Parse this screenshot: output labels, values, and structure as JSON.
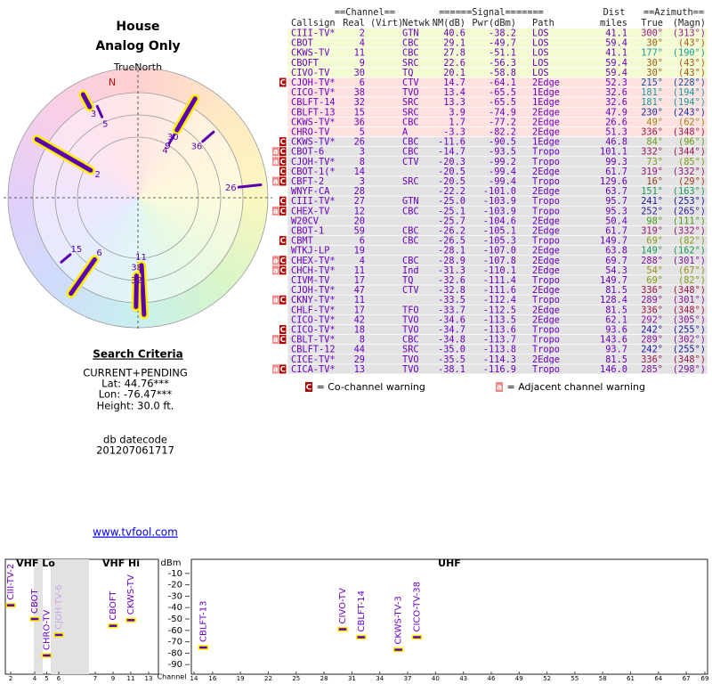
{
  "header": {
    "title": "House",
    "subtitle": "Analog Only"
  },
  "polar": {
    "north_label": "TrueNorth",
    "n_label": "N",
    "spoke_color": "#5a00b0",
    "glow_color": "#ffee00",
    "spokes": [
      {
        "label": "2",
        "azimuth": 300,
        "r": [
          0.42,
          0.9
        ],
        "strong": true
      },
      {
        "label": "3",
        "azimuth": 332,
        "r": [
          0.79,
          0.9
        ],
        "strong": true
      },
      {
        "label": "5",
        "azimuth": 336,
        "r": [
          0.68,
          0.77
        ],
        "strong": false
      },
      {
        "label": "4",
        "azimuth": 30,
        "r": [
          0.48,
          0.53
        ],
        "strong": false
      },
      {
        "label": "9",
        "azimuth": 30,
        "r": [
          0.52,
          0.58
        ],
        "strong": false
      },
      {
        "label": "30",
        "azimuth": 30,
        "r": [
          0.6,
          0.88
        ],
        "strong": true
      },
      {
        "label": "36",
        "azimuth": 49,
        "r": [
          0.66,
          0.77
        ],
        "strong": false
      },
      {
        "label": "26",
        "azimuth": 84,
        "r": [
          0.78,
          0.95
        ],
        "strong": false
      },
      {
        "label": "15",
        "azimuth": 230,
        "r": [
          0.68,
          0.77
        ],
        "strong": false
      },
      {
        "label": "6",
        "azimuth": 215,
        "r": [
          0.58,
          0.9
        ],
        "strong": true
      },
      {
        "label": "11",
        "azimuth": 177,
        "r": [
          0.52,
          0.9
        ],
        "strong": true
      },
      {
        "label": "38",
        "azimuth": 181,
        "r": [
          0.6,
          0.84
        ],
        "strong": true
      },
      {
        "label": "32",
        "azimuth": 181,
        "r": [
          0.7,
          0.76
        ],
        "strong": false
      }
    ]
  },
  "search": {
    "title": "Search Criteria",
    "lines": [
      "CURRENT+PENDING",
      "Lat: 44.76***",
      "Lon: -76.47***",
      "Height: 30.0 ft."
    ],
    "db_label": "db datecode",
    "datecode": "201207061717"
  },
  "link": "www.tvfool.com",
  "table": {
    "group_headers": [
      "==Channel==",
      "======Signal=======",
      "Dist",
      "==Azimuth=="
    ],
    "columns": [
      "Callsign",
      "Real",
      "(Virt)",
      "Netwk",
      "NM(dB)",
      "Pwr(dBm)",
      "Path",
      "miles",
      "True",
      "(Magn)"
    ],
    "text_color": "#6a00c0",
    "warn_colors": {
      "C": "#b00000",
      "a": "#f08a8a"
    },
    "legend": [
      {
        "mark": "C",
        "text": " = Co-channel warning"
      },
      {
        "mark": "a",
        "text": " = Adjacent channel warning"
      }
    ],
    "rows": [
      {
        "bg": "#f3fbd2",
        "warn": [],
        "callsign": "CIII-TV*",
        "real": "2",
        "netwk": "GTN",
        "nm": "40.6",
        "pwr": "-38.2",
        "path": "LOS",
        "miles": "41.1",
        "true": "300°",
        "magn": "(313°)"
      },
      {
        "bg": "#f3fbd2",
        "warn": [],
        "callsign": "CBOT",
        "real": "4",
        "netwk": "CBC",
        "nm": "29.1",
        "pwr": "-49.7",
        "path": "LOS",
        "miles": "59.4",
        "true": "30°",
        "magn": "(43°)"
      },
      {
        "bg": "#f3fbd2",
        "warn": [],
        "callsign": "CKWS-TV",
        "real": "11",
        "netwk": "CBC",
        "nm": "27.8",
        "pwr": "-51.1",
        "path": "LOS",
        "miles": "41.1",
        "true": "177°",
        "magn": "(190°)"
      },
      {
        "bg": "#f3fbd2",
        "warn": [],
        "callsign": "CBOFT",
        "real": "9",
        "netwk": "SRC",
        "nm": "22.6",
        "pwr": "-56.3",
        "path": "LOS",
        "miles": "59.4",
        "true": "30°",
        "magn": "(43°)"
      },
      {
        "bg": "#f3fbd2",
        "warn": [],
        "callsign": "CIVO-TV",
        "real": "30",
        "netwk": "TQ",
        "nm": "20.1",
        "pwr": "-58.8",
        "path": "LOS",
        "miles": "59.4",
        "true": "30°",
        "magn": "(43°)"
      },
      {
        "bg": "#ffe2e0",
        "warn": [
          "C"
        ],
        "callsign": "CJOH-TV*",
        "real": "6",
        "netwk": "CTV",
        "nm": "14.7",
        "pwr": "-64.1",
        "path": "2Edge",
        "miles": "52.3",
        "true": "215°",
        "magn": "(228°)"
      },
      {
        "bg": "#ffe2e0",
        "warn": [],
        "callsign": "CICO-TV*",
        "real": "38",
        "netwk": "TVO",
        "nm": "13.4",
        "pwr": "-65.5",
        "path": "1Edge",
        "miles": "32.6",
        "true": "181°",
        "magn": "(194°)"
      },
      {
        "bg": "#ffe2e0",
        "warn": [],
        "callsign": "CBLFT-14",
        "real": "32",
        "netwk": "SRC",
        "nm": "13.3",
        "pwr": "-65.5",
        "path": "1Edge",
        "miles": "32.6",
        "true": "181°",
        "magn": "(194°)"
      },
      {
        "bg": "#ffe2e0",
        "warn": [],
        "callsign": "CBLFT-13",
        "real": "15",
        "netwk": "SRC",
        "nm": "3.9",
        "pwr": "-74.9",
        "path": "2Edge",
        "miles": "47.9",
        "true": "230°",
        "magn": "(243°)"
      },
      {
        "bg": "#ffe2e0",
        "warn": [],
        "callsign": "CKWS-TV*",
        "real": "36",
        "netwk": "CBC",
        "nm": "1.7",
        "pwr": "-77.2",
        "path": "2Edge",
        "miles": "26.6",
        "true": "49°",
        "magn": "(62°)"
      },
      {
        "bg": "#ffe2e0",
        "warn": [],
        "callsign": "CHRO-TV",
        "real": "5",
        "netwk": "A",
        "nm": "-3.3",
        "pwr": "-82.2",
        "path": "2Edge",
        "miles": "51.3",
        "true": "336°",
        "magn": "(348°)"
      },
      {
        "bg": "#e3e3e3",
        "warn": [
          "C"
        ],
        "callsign": "CKWS-TV*",
        "real": "26",
        "netwk": "CBC",
        "nm": "-11.6",
        "pwr": "-90.5",
        "path": "1Edge",
        "miles": "46.8",
        "true": "84°",
        "magn": "(96°)"
      },
      {
        "bg": "#e3e3e3",
        "warn": [
          "a",
          "C"
        ],
        "callsign": "CBOT-6",
        "real": "3",
        "netwk": "CBC",
        "nm": "-14.7",
        "pwr": "-93.5",
        "path": "Tropo",
        "miles": "101.1",
        "true": "332°",
        "magn": "(344°)"
      },
      {
        "bg": "#e3e3e3",
        "warn": [
          "a",
          "C"
        ],
        "callsign": "CJOH-TV*",
        "real": "8",
        "netwk": "CTV",
        "nm": "-20.3",
        "pwr": "-99.2",
        "path": "Tropo",
        "miles": "99.3",
        "true": "73°",
        "magn": "(85°)"
      },
      {
        "bg": "#e3e3e3",
        "warn": [
          "C"
        ],
        "callsign": "CBOT-1(*",
        "real": "14",
        "nm": "-20.5",
        "pwr": "-99.4",
        "path": "2Edge",
        "miles": "61.7",
        "true": "319°",
        "magn": "(332°)"
      },
      {
        "bg": "#e3e3e3",
        "warn": [
          "a",
          "C"
        ],
        "callsign": "CBFT-2",
        "real": "3",
        "netwk": "SRC",
        "nm": "-20.5",
        "pwr": "-99.4",
        "path": "Tropo",
        "miles": "129.6",
        "true": "16°",
        "magn": "(29°)"
      },
      {
        "bg": "#e3e3e3",
        "warn": [],
        "callsign": "WNYF-CA",
        "real": "28",
        "nm": "-22.2",
        "pwr": "-101.0",
        "path": "2Edge",
        "miles": "63.7",
        "true": "151°",
        "magn": "(163°)"
      },
      {
        "bg": "#e3e3e3",
        "warn": [
          "C"
        ],
        "callsign": "CIII-TV*",
        "real": "27",
        "netwk": "GTN",
        "nm": "-25.0",
        "pwr": "-103.9",
        "path": "Tropo",
        "miles": "95.7",
        "true": "241°",
        "magn": "(253°)"
      },
      {
        "bg": "#e3e3e3",
        "warn": [
          "a",
          "C"
        ],
        "callsign": "CHEX-TV",
        "real": "12",
        "netwk": "CBC",
        "nm": "-25.1",
        "pwr": "-103.9",
        "path": "Tropo",
        "miles": "95.3",
        "true": "252°",
        "magn": "(265°)"
      },
      {
        "bg": "#e3e3e3",
        "warn": [],
        "callsign": "W20CV",
        "real": "20",
        "nm": "-25.7",
        "pwr": "-104.6",
        "path": "2Edge",
        "miles": "50.4",
        "true": "98°",
        "magn": "(111°)"
      },
      {
        "bg": "#e3e3e3",
        "warn": [],
        "callsign": "CBOT-1",
        "real": "59",
        "netwk": "CBC",
        "nm": "-26.2",
        "pwr": "-105.1",
        "path": "2Edge",
        "miles": "61.7",
        "true": "319°",
        "magn": "(332°)"
      },
      {
        "bg": "#e3e3e3",
        "warn": [
          "C"
        ],
        "callsign": "CBMT",
        "real": "6",
        "netwk": "CBC",
        "nm": "-26.5",
        "pwr": "-105.3",
        "path": "Tropo",
        "miles": "149.7",
        "true": "69°",
        "magn": "(82°)"
      },
      {
        "bg": "#e3e3e3",
        "warn": [],
        "callsign": "WTKJ-LP",
        "real": "19",
        "nm": "-28.1",
        "pwr": "-107.0",
        "path": "2Edge",
        "miles": "63.8",
        "true": "149°",
        "magn": "(162°)"
      },
      {
        "bg": "#e3e3e3",
        "warn": [
          "a",
          "C"
        ],
        "callsign": "CHEX-TV*",
        "real": "4",
        "netwk": "CBC",
        "nm": "-28.9",
        "pwr": "-107.8",
        "path": "2Edge",
        "miles": "69.7",
        "true": "288°",
        "magn": "(301°)"
      },
      {
        "bg": "#e3e3e3",
        "warn": [
          "a",
          "C"
        ],
        "callsign": "CHCH-TV*",
        "real": "11",
        "netwk": "Ind",
        "nm": "-31.3",
        "pwr": "-110.1",
        "path": "2Edge",
        "miles": "54.3",
        "true": "54°",
        "magn": "(67°)"
      },
      {
        "bg": "#e3e3e3",
        "warn": [],
        "callsign": "CIVM-TV",
        "real": "17",
        "netwk": "TQ",
        "nm": "-32.6",
        "pwr": "-111.4",
        "path": "Tropo",
        "miles": "149.7",
        "true": "69°",
        "magn": "(82°)"
      },
      {
        "bg": "#e3e3e3",
        "warn": [],
        "callsign": "CJOH-TV*",
        "real": "47",
        "netwk": "CTV",
        "nm": "-32.8",
        "pwr": "-111.6",
        "path": "2Edge",
        "miles": "81.5",
        "true": "336°",
        "magn": "(348°)"
      },
      {
        "bg": "#e3e3e3",
        "warn": [
          "a",
          "C"
        ],
        "callsign": "CKNY-TV*",
        "real": "11",
        "nm": "-33.5",
        "pwr": "-112.4",
        "path": "Tropo",
        "miles": "128.4",
        "true": "289°",
        "magn": "(301°)"
      },
      {
        "bg": "#e3e3e3",
        "warn": [],
        "callsign": "CHLF-TV*",
        "real": "17",
        "netwk": "TFO",
        "nm": "-33.7",
        "pwr": "-112.5",
        "path": "2Edge",
        "miles": "81.5",
        "true": "336°",
        "magn": "(348°)"
      },
      {
        "bg": "#e3e3e3",
        "warn": [],
        "callsign": "CICO-TV*",
        "real": "42",
        "netwk": "TVO",
        "nm": "-34.6",
        "pwr": "-113.5",
        "path": "2Edge",
        "miles": "62.1",
        "true": "292°",
        "magn": "(305°)"
      },
      {
        "bg": "#e3e3e3",
        "warn": [
          "C"
        ],
        "callsign": "CICO-TV*",
        "real": "18",
        "netwk": "TVO",
        "nm": "-34.7",
        "pwr": "-113.6",
        "path": "Tropo",
        "miles": "93.6",
        "true": "242°",
        "magn": "(255°)"
      },
      {
        "bg": "#e3e3e3",
        "warn": [
          "a",
          "C"
        ],
        "callsign": "CBLT-TV*",
        "real": "8",
        "netwk": "CBC",
        "nm": "-34.8",
        "pwr": "-113.7",
        "path": "Tropo",
        "miles": "143.6",
        "true": "289°",
        "magn": "(302°)"
      },
      {
        "bg": "#e3e3e3",
        "warn": [],
        "callsign": "CBLFT-12",
        "real": "44",
        "netwk": "SRC",
        "nm": "-35.0",
        "pwr": "-113.8",
        "path": "Tropo",
        "miles": "93.7",
        "true": "242°",
        "magn": "(255°)"
      },
      {
        "bg": "#e3e3e3",
        "warn": [],
        "callsign": "CICE-TV*",
        "real": "29",
        "netwk": "TVO",
        "nm": "-35.5",
        "pwr": "-114.3",
        "path": "2Edge",
        "miles": "81.5",
        "true": "336°",
        "magn": "(348°)"
      },
      {
        "bg": "#e3e3e3",
        "warn": [
          "a",
          "C"
        ],
        "callsign": "CICA-TV*",
        "real": "13",
        "netwk": "TVO",
        "nm": "-38.1",
        "pwr": "-116.9",
        "path": "Tropo",
        "miles": "146.0",
        "true": "285°",
        "magn": "(298°)"
      }
    ]
  },
  "channel_chart": {
    "y_label": "dBm",
    "x_label": "Channel",
    "ylim": [
      -100,
      0
    ],
    "yticks": [
      -10,
      -20,
      -30,
      -40,
      -50,
      -60,
      -70,
      -80,
      -90
    ],
    "bar_color": "#5a00b0",
    "bar_outline": "#ffee00",
    "bands": [
      {
        "name": "VHF Lo",
        "xlim": [
          2,
          6
        ],
        "xticks": [
          2,
          4,
          5,
          6
        ],
        "stations": [
          {
            "name": "CIII-TV-2",
            "channel": 2,
            "value": -38,
            "color": "#6a00c0"
          },
          {
            "name": "CBOT",
            "channel": 4,
            "value": -50,
            "color": "#6a00c0"
          },
          {
            "name": "CHRO-TV",
            "channel": 5,
            "value": -82,
            "color": "#6a00c0"
          },
          {
            "name": "CJOH-TV-6",
            "channel": 6,
            "value": -64,
            "color": "#c8a6e6"
          }
        ]
      },
      {
        "name": "VHF Hi",
        "xlim": [
          7,
          13
        ],
        "xticks": [
          7,
          9,
          11,
          13
        ],
        "stations": [
          {
            "name": "CBOFT",
            "channel": 9,
            "value": -56,
            "color": "#6a00c0"
          },
          {
            "name": "CKWS-TV",
            "channel": 11,
            "value": -51,
            "color": "#6a00c0"
          }
        ]
      },
      {
        "name": "UHF",
        "xlim": [
          14,
          69
        ],
        "xticks": [
          14,
          16,
          19,
          22,
          25,
          28,
          31,
          34,
          37,
          40,
          43,
          46,
          49,
          52,
          55,
          58,
          61,
          64,
          67,
          69
        ],
        "stations": [
          {
            "name": "CBLFT-13",
            "channel": 15,
            "value": -75,
            "color": "#6a00c0"
          },
          {
            "name": "CIVO-TV",
            "channel": 30,
            "value": -59,
            "color": "#6a00c0"
          },
          {
            "name": "CBLFT-14",
            "channel": 32,
            "value": -66,
            "color": "#6a00c0"
          },
          {
            "name": "CKWS-TV-3",
            "channel": 36,
            "value": -77,
            "color": "#6a00c0"
          },
          {
            "name": "CICO-TV-38",
            "channel": 38,
            "value": -66,
            "color": "#6a00c0"
          }
        ]
      }
    ]
  }
}
